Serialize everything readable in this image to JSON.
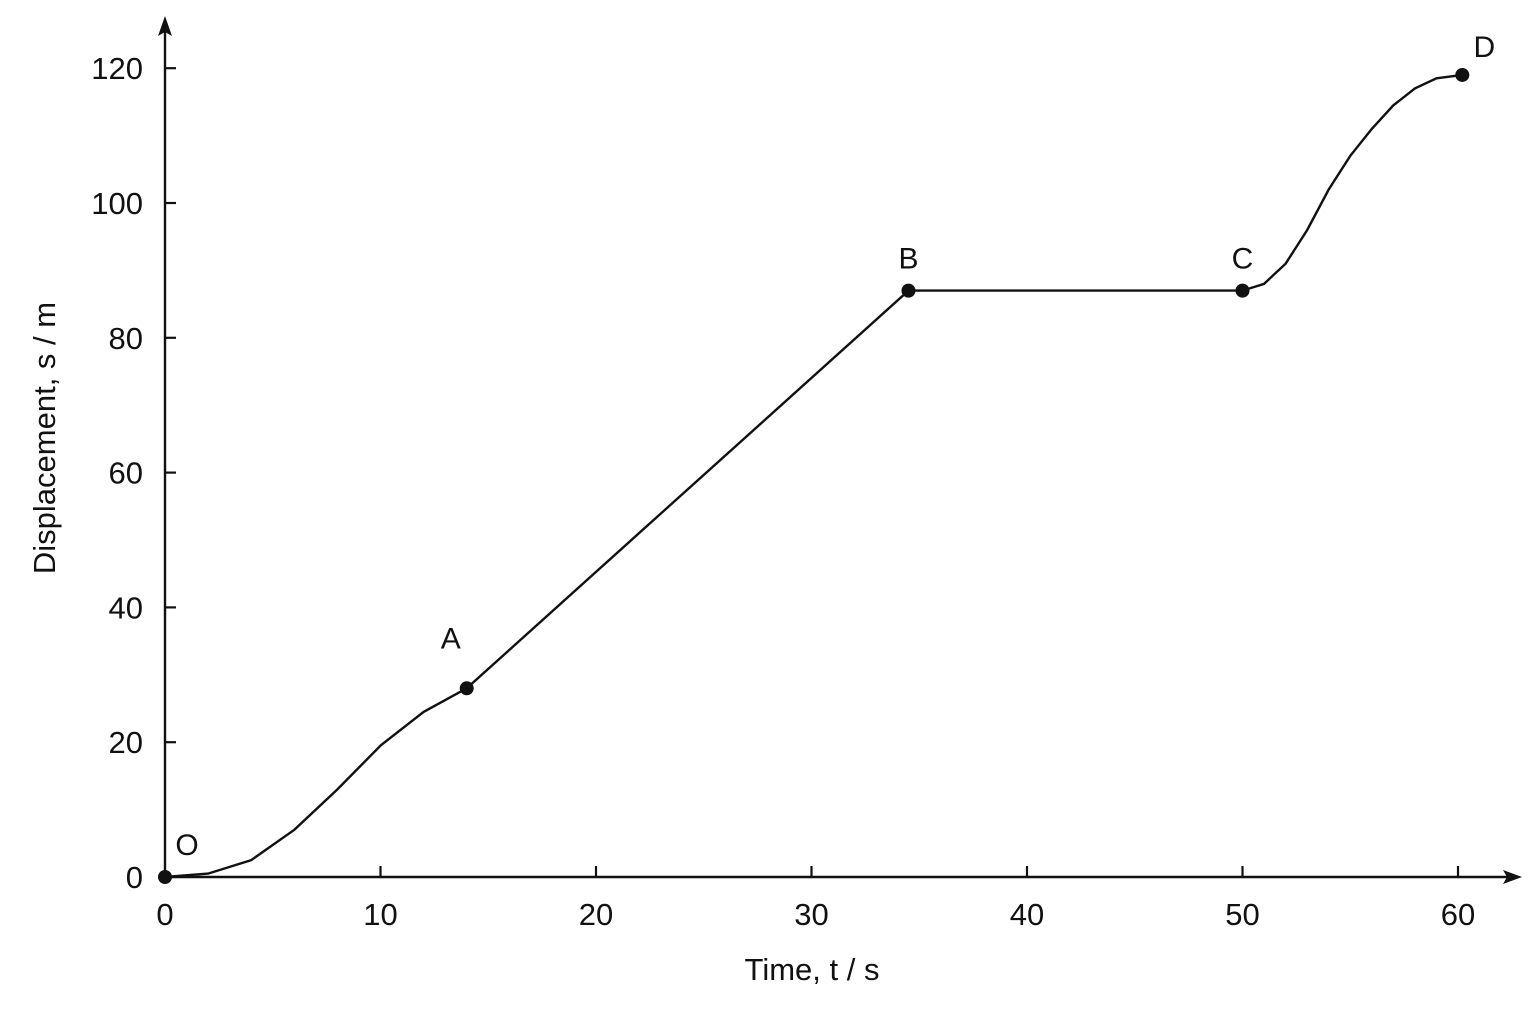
{
  "chart_data": {
    "type": "line",
    "xlabel": "Time, t / s",
    "ylabel": "Displacement, s / m",
    "xlim": [
      0,
      65
    ],
    "ylim": [
      0,
      127
    ],
    "x_ticks": [
      "0",
      "10",
      "20",
      "30",
      "40",
      "50",
      "60"
    ],
    "y_ticks": [
      "0",
      "20",
      "40",
      "60",
      "80",
      "100",
      "120"
    ],
    "grid": false,
    "points": [
      {
        "label": "O",
        "x": 0,
        "y": 0
      },
      {
        "label": "A",
        "x": 14,
        "y": 28
      },
      {
        "label": "B",
        "x": 34.5,
        "y": 87
      },
      {
        "label": "C",
        "x": 50,
        "y": 87
      },
      {
        "label": "D",
        "x": 60.2,
        "y": 119
      }
    ],
    "curve": [
      [
        0,
        0
      ],
      [
        2,
        0.5
      ],
      [
        4,
        2.5
      ],
      [
        6,
        7
      ],
      [
        8,
        13
      ],
      [
        10,
        19.5
      ],
      [
        12,
        24.5
      ],
      [
        14,
        28
      ],
      [
        34.5,
        87
      ],
      [
        50,
        87
      ],
      [
        51,
        88
      ],
      [
        52,
        91
      ],
      [
        53,
        96
      ],
      [
        54,
        102
      ],
      [
        55,
        107
      ],
      [
        56,
        111
      ],
      [
        57,
        114.5
      ],
      [
        58,
        117
      ],
      [
        59,
        118.5
      ],
      [
        60.2,
        119
      ]
    ],
    "colors": {
      "line": "#111111",
      "background": "#ffffff"
    }
  }
}
